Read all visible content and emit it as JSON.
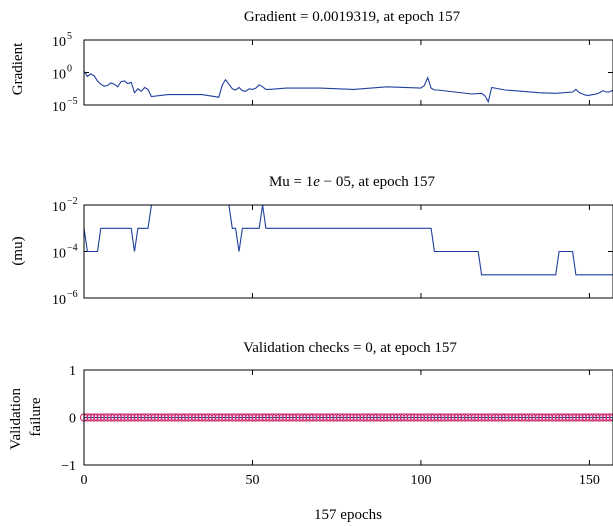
{
  "chart_data": [
    {
      "type": "line",
      "title": "Gradient = 0.0019319, at epoch 157",
      "ylabel": "Gradient",
      "yscale": "log",
      "xlim": [
        0,
        157
      ],
      "ylim_exp": [
        -5,
        5
      ],
      "yticks": [
        {
          "exp": 5,
          "label": "10",
          "sup": "5"
        },
        {
          "exp": 0,
          "label": "10",
          "sup": "0"
        },
        {
          "exp": -5,
          "label": "10",
          "sup": "−5"
        }
      ],
      "color": "#1f3f9e",
      "x": [
        0,
        1,
        2,
        3,
        4,
        5,
        6,
        7,
        8,
        9,
        10,
        11,
        12,
        13,
        14,
        15,
        16,
        17,
        18,
        19,
        20,
        25,
        30,
        35,
        40,
        41,
        42,
        43,
        44,
        45,
        46,
        47,
        48,
        49,
        50,
        51,
        52,
        53,
        54,
        55,
        60,
        70,
        80,
        90,
        100,
        101,
        102,
        103,
        104,
        105,
        110,
        115,
        118,
        119,
        120,
        121,
        125,
        130,
        135,
        140,
        145,
        146,
        147,
        148,
        149,
        150,
        151,
        152,
        153,
        154,
        155,
        156,
        157
      ],
      "y_exp": [
        0.2,
        -0.6,
        -0.2,
        -0.5,
        -1.3,
        -1.8,
        -2.1,
        -2.0,
        -1.6,
        -1.8,
        -2.2,
        -1.4,
        -1.3,
        -1.7,
        -1.5,
        -3.1,
        -2.5,
        -2.9,
        -2.3,
        -2.6,
        -3.7,
        -3.4,
        -3.4,
        -3.4,
        -3.8,
        -2.0,
        -1.1,
        -1.8,
        -2.5,
        -2.7,
        -2.3,
        -2.8,
        -2.9,
        -2.5,
        -2.6,
        -2.4,
        -1.9,
        -2.2,
        -2.6,
        -2.6,
        -2.4,
        -2.4,
        -2.6,
        -2.2,
        -2.4,
        -2.0,
        -0.8,
        -2.4,
        -2.7,
        -2.7,
        -3.0,
        -3.3,
        -3.2,
        -3.6,
        -4.5,
        -2.3,
        -2.7,
        -2.9,
        -3.1,
        -3.2,
        -3.0,
        -2.6,
        -3.1,
        -3.3,
        -3.5,
        -3.5,
        -3.4,
        -3.3,
        -3.1,
        -2.8,
        -3.0,
        -3.0,
        -2.7
      ]
    },
    {
      "type": "line",
      "title_parts": [
        "Mu = 1",
        "e",
        " − 05, at epoch 157"
      ],
      "ylabel": "(mu)",
      "yscale": "log",
      "xlim": [
        0,
        157
      ],
      "ylim_exp": [
        -6,
        -2
      ],
      "yticks": [
        {
          "exp": -2,
          "label": "10",
          "sup": "−2"
        },
        {
          "exp": -4,
          "label": "10",
          "sup": "−4"
        },
        {
          "exp": -6,
          "label": "10",
          "sup": "−6"
        }
      ],
      "color": "#1f3f9e",
      "x": [
        0,
        1,
        2,
        3,
        4,
        5,
        6,
        7,
        8,
        9,
        10,
        11,
        12,
        13,
        14,
        15,
        16,
        17,
        18,
        19,
        20,
        38,
        39,
        40,
        41,
        42,
        43,
        44,
        45,
        46,
        47,
        48,
        49,
        50,
        51,
        52,
        53,
        54,
        55,
        56,
        57,
        100,
        101,
        102,
        103,
        104,
        105,
        117,
        118,
        130,
        131,
        140,
        141,
        142,
        143,
        144,
        145,
        146,
        147,
        148,
        149,
        150,
        151,
        152,
        153,
        154,
        155,
        156,
        157
      ],
      "y_exp": [
        -3,
        -4,
        -4,
        -4,
        -4,
        -3,
        -3,
        -3,
        -3,
        -3,
        -3,
        -3,
        -3,
        -3,
        -3,
        -4,
        -3,
        -3,
        -3,
        -3,
        -2,
        -2,
        -2,
        -2,
        -2,
        -2,
        -2,
        -3,
        -3,
        -4,
        -3,
        -3,
        -3,
        -3,
        -3,
        -3,
        -2,
        -3,
        -3,
        -3,
        -3,
        -3,
        -3,
        -3,
        -3,
        -4,
        -4,
        -4,
        -5,
        -5,
        -5,
        -5,
        -4,
        -4,
        -4,
        -4,
        -4,
        -5,
        -5,
        -5,
        -5,
        -5,
        -5,
        -5,
        -5,
        -5,
        -5,
        -5,
        -5
      ],
      "y_exp_fine": [
        -3.0,
        -4.0,
        -4.0,
        -4.0,
        -4.0,
        -3.0,
        -3.0,
        -3.0,
        -3.0,
        -3.0,
        -3.0,
        -3.0,
        -3.0,
        -3.0,
        -3.0,
        -4.0,
        -3.0,
        -3.0,
        -3.0,
        -3.0,
        -2.0,
        -2.0,
        -2.0,
        -2.0,
        -2.0,
        -2.0,
        -2.0,
        -3.0,
        -3.0,
        -4.0,
        -3.0,
        -3.0,
        -3.0,
        -3.0,
        -3.0,
        -3.0,
        -2.0,
        -3.0,
        -3.0,
        -3.0,
        -3.0,
        -3.0,
        -3.0,
        -3.0,
        -3.0,
        -4.0,
        -4.0,
        -4.0,
        -5.0,
        -5.0,
        -5.0,
        -5.0,
        -4.0,
        -4.0,
        -4.0,
        -4.0,
        -4.0,
        -5.0,
        -5.0,
        -5.0,
        -5.0,
        -5.0,
        -5.0,
        -5.0,
        -5.0,
        -5.0,
        -5.0,
        -5.0,
        -5.0
      ]
    },
    {
      "type": "scatter",
      "title": "Validation checks = 0, at epoch 157",
      "ylabel_lines": [
        "Validation",
        "failure"
      ],
      "xlabel": "157 epochs",
      "xlim": [
        0,
        157
      ],
      "ylim": [
        -1,
        1
      ],
      "yticks": [
        1,
        0,
        -1
      ],
      "xticks": [
        0,
        50,
        100,
        150
      ],
      "line_color": "#1f3f9e",
      "marker_color": "#cc2a6a",
      "x_start": 0,
      "x_end": 157,
      "y_value": 0
    }
  ]
}
